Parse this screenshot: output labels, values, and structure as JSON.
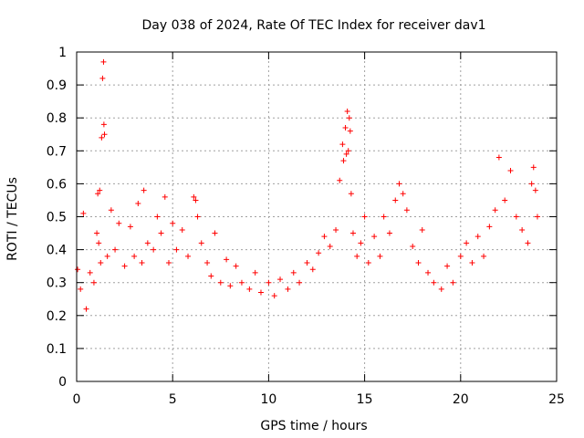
{
  "chart_data": {
    "type": "scatter",
    "title": "Day 038 of 2024, Rate Of TEC Index for receiver dav1",
    "xlabel": "GPS time / hours",
    "ylabel": "ROTI / TECUs",
    "xlim": [
      0,
      25
    ],
    "ylim": [
      0,
      1
    ],
    "x_ticks": [
      0,
      5,
      10,
      15,
      20,
      25
    ],
    "x_tick_labels": [
      "0",
      "5",
      "10",
      "15",
      "20",
      "25"
    ],
    "y_ticks": [
      0,
      0.1,
      0.2,
      0.3,
      0.4,
      0.5,
      0.6,
      0.7,
      0.8,
      0.9,
      1
    ],
    "y_tick_labels": [
      "0",
      "0.1",
      "0.2",
      "0.3",
      "0.4",
      "0.5",
      "0.6",
      "0.7",
      "0.8",
      "0.9",
      "1"
    ],
    "grid": true,
    "legend": "none",
    "marker": "plus",
    "colors": {
      "points": "#ff0000",
      "grid": "#a0a0a0",
      "axis": "#000000"
    },
    "series": [
      {
        "x": [
          0.05,
          0.2,
          0.35,
          0.5,
          0.7,
          0.9,
          1.05,
          1.1,
          1.15,
          1.2,
          1.25,
          1.3,
          1.35,
          1.4,
          1.42,
          1.45,
          1.6,
          1.8,
          2.0,
          2.2,
          2.5,
          2.8,
          3.0,
          3.2,
          3.4,
          3.5,
          3.7,
          4.0,
          4.2,
          4.4,
          4.6,
          4.8,
          5.0,
          5.2,
          5.5,
          5.8,
          6.1,
          6.2,
          6.3,
          6.5,
          6.8,
          7.0,
          7.2,
          7.5,
          7.8,
          8.0,
          8.3,
          8.6,
          9.0,
          9.3,
          9.6,
          10.0,
          10.3,
          10.6,
          11.0,
          11.3,
          11.6,
          12.0,
          12.3,
          12.6,
          12.9,
          13.2,
          13.5,
          13.7,
          13.85,
          13.9,
          14.0,
          14.05,
          14.1,
          14.15,
          14.2,
          14.25,
          14.3,
          14.4,
          14.6,
          14.8,
          15.0,
          15.2,
          15.5,
          15.8,
          16.0,
          16.3,
          16.6,
          16.8,
          17.0,
          17.2,
          17.5,
          17.8,
          18.0,
          18.3,
          18.6,
          19.0,
          19.3,
          19.6,
          20.0,
          20.3,
          20.6,
          20.9,
          21.2,
          21.5,
          21.8,
          22.0,
          22.3,
          22.6,
          22.9,
          23.2,
          23.5,
          23.7,
          23.8,
          23.9,
          24.0
        ],
        "y": [
          0.34,
          0.28,
          0.51,
          0.22,
          0.33,
          0.3,
          0.45,
          0.57,
          0.42,
          0.58,
          0.36,
          0.74,
          0.92,
          0.97,
          0.78,
          0.75,
          0.38,
          0.52,
          0.4,
          0.48,
          0.35,
          0.47,
          0.38,
          0.54,
          0.36,
          0.58,
          0.42,
          0.4,
          0.5,
          0.45,
          0.56,
          0.36,
          0.48,
          0.4,
          0.46,
          0.38,
          0.56,
          0.55,
          0.5,
          0.42,
          0.36,
          0.32,
          0.45,
          0.3,
          0.37,
          0.29,
          0.35,
          0.3,
          0.28,
          0.33,
          0.27,
          0.3,
          0.26,
          0.31,
          0.28,
          0.33,
          0.3,
          0.36,
          0.34,
          0.39,
          0.44,
          0.41,
          0.46,
          0.61,
          0.72,
          0.67,
          0.77,
          0.69,
          0.82,
          0.7,
          0.8,
          0.76,
          0.57,
          0.45,
          0.38,
          0.42,
          0.5,
          0.36,
          0.44,
          0.38,
          0.5,
          0.45,
          0.55,
          0.6,
          0.57,
          0.52,
          0.41,
          0.36,
          0.46,
          0.33,
          0.3,
          0.28,
          0.35,
          0.3,
          0.38,
          0.42,
          0.36,
          0.44,
          0.38,
          0.47,
          0.52,
          0.68,
          0.55,
          0.64,
          0.5,
          0.46,
          0.42,
          0.6,
          0.65,
          0.58,
          0.5
        ]
      }
    ]
  }
}
